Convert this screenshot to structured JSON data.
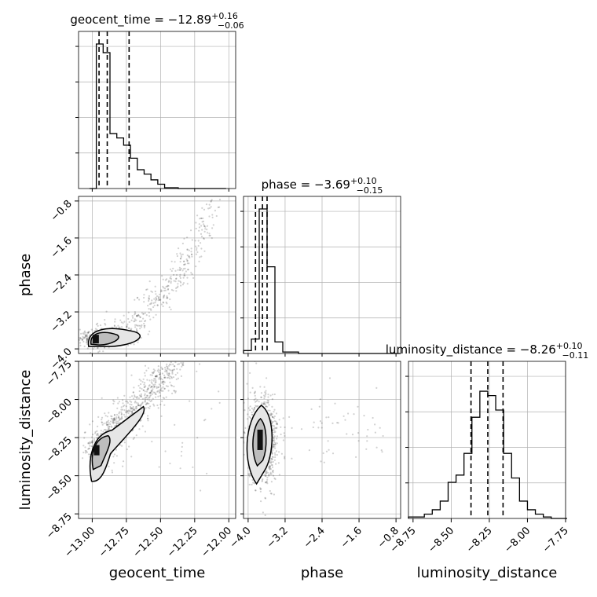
{
  "chart_data": {
    "type": "corner",
    "parameters": [
      {
        "name": "geocent_time",
        "title_value": "−12.89",
        "title_plus": "+0.16",
        "title_minus": "−0.06",
        "range": [
          -13.1,
          -11.95
        ],
        "ticks": [
          -13.0,
          -12.75,
          -12.5,
          -12.25,
          -12.0
        ],
        "tick_labels": [
          "−13.00",
          "−12.75",
          "−12.50",
          "−12.25",
          "−12.00"
        ],
        "quantiles": [
          -12.95,
          -12.89,
          -12.73
        ],
        "hist": {
          "bins": [
            -13.02,
            -12.97,
            -12.92,
            -12.87,
            -12.82,
            -12.77,
            -12.72,
            -12.67,
            -12.62,
            -12.57,
            -12.52,
            -12.47,
            -12.42,
            -12.37,
            -12.32,
            -12.27,
            -12.22,
            -12.17,
            -12.12,
            -12.07,
            -12.02
          ],
          "counts": [
            0.0,
            1.0,
            0.94,
            0.38,
            0.35,
            0.3,
            0.21,
            0.13,
            0.1,
            0.06,
            0.03,
            0.005,
            0.005,
            0.0,
            0.0,
            0.0,
            0.0,
            0.0,
            0.0,
            0.0
          ]
        }
      },
      {
        "name": "phase",
        "title_value": "−3.69",
        "title_plus": "+0.10",
        "title_minus": "−0.15",
        "range": [
          -4.1,
          -0.7
        ],
        "ticks": [
          -4.0,
          -3.2,
          -2.4,
          -1.6,
          -0.8
        ],
        "tick_labels": [
          "−4.0",
          "−3.2",
          "−2.4",
          "−1.6",
          "−0.8"
        ],
        "quantiles": [
          -3.84,
          -3.69,
          -3.59
        ],
        "hist": {
          "bins": [
            -4.1,
            -3.93,
            -3.76,
            -3.59,
            -3.42,
            -3.25,
            -3.08,
            -2.91,
            -2.74,
            -2.57,
            -2.4,
            -2.23,
            -2.06,
            -1.89,
            -1.72,
            -1.55,
            -1.38,
            -1.21,
            -1.04,
            -0.87,
            -0.7
          ],
          "counts": [
            0.02,
            0.1,
            1.0,
            0.6,
            0.08,
            0.01,
            0.01,
            0.0,
            0.0,
            0.0,
            0.0,
            0.0,
            0.0,
            0.0,
            0.0,
            0.0,
            0.0,
            0.0,
            0.0,
            0.0
          ]
        }
      },
      {
        "name": "luminosity_distance",
        "title_value": "−8.26",
        "title_plus": "+0.10",
        "title_minus": "−0.11",
        "range": [
          -8.78,
          -7.75
        ],
        "ticks": [
          -8.75,
          -8.5,
          -8.25,
          -8.0,
          -7.75
        ],
        "tick_labels": [
          "−8.75",
          "−8.50",
          "−8.25",
          "−8.00",
          "−7.75"
        ],
        "quantiles": [
          -8.37,
          -8.26,
          -8.16
        ],
        "hist": {
          "bins": [
            -8.78,
            -8.728,
            -8.676,
            -8.624,
            -8.572,
            -8.52,
            -8.468,
            -8.416,
            -8.364,
            -8.312,
            -8.26,
            -8.208,
            -8.156,
            -8.104,
            -8.052,
            -8.0,
            -7.948,
            -7.896,
            -7.844,
            -7.792,
            -7.74
          ],
          "counts": [
            0.01,
            0.01,
            0.03,
            0.06,
            0.12,
            0.25,
            0.3,
            0.45,
            0.7,
            0.88,
            0.85,
            0.75,
            0.45,
            0.28,
            0.12,
            0.06,
            0.03,
            0.01,
            0.0,
            0.0
          ]
        }
      }
    ],
    "pairs": [
      {
        "x": "geocent_time",
        "y": "phase",
        "center": [
          -12.98,
          -3.78
        ]
      },
      {
        "x": "geocent_time",
        "y": "luminosity_distance",
        "center": [
          -12.97,
          -8.33
        ]
      },
      {
        "x": "phase",
        "y": "luminosity_distance",
        "center": [
          -3.75,
          -8.27
        ]
      }
    ],
    "grid": true,
    "colors": {
      "line": "#000000",
      "grid": "#b0b0b0",
      "scatter": "#000000"
    }
  }
}
